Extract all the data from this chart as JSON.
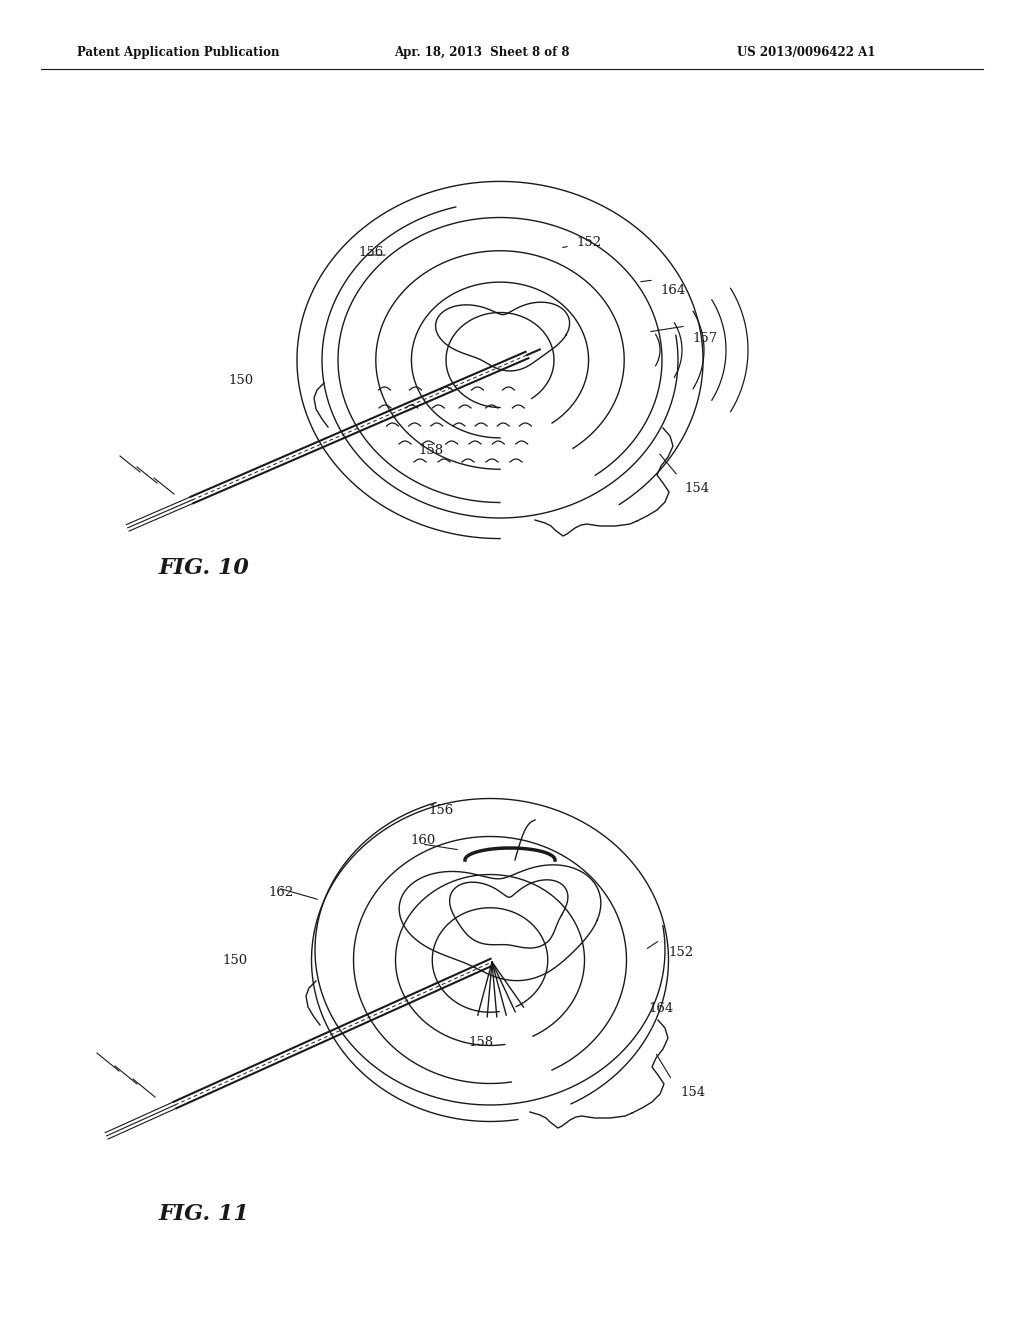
{
  "header_left": "Patent Application Publication",
  "header_center": "Apr. 18, 2013  Sheet 8 of 8",
  "header_right": "US 2013/0096422 A1",
  "fig10_label": "FIG. 10",
  "fig11_label": "FIG. 11",
  "bg_color": "#ffffff",
  "line_color": "#1a1a1a"
}
